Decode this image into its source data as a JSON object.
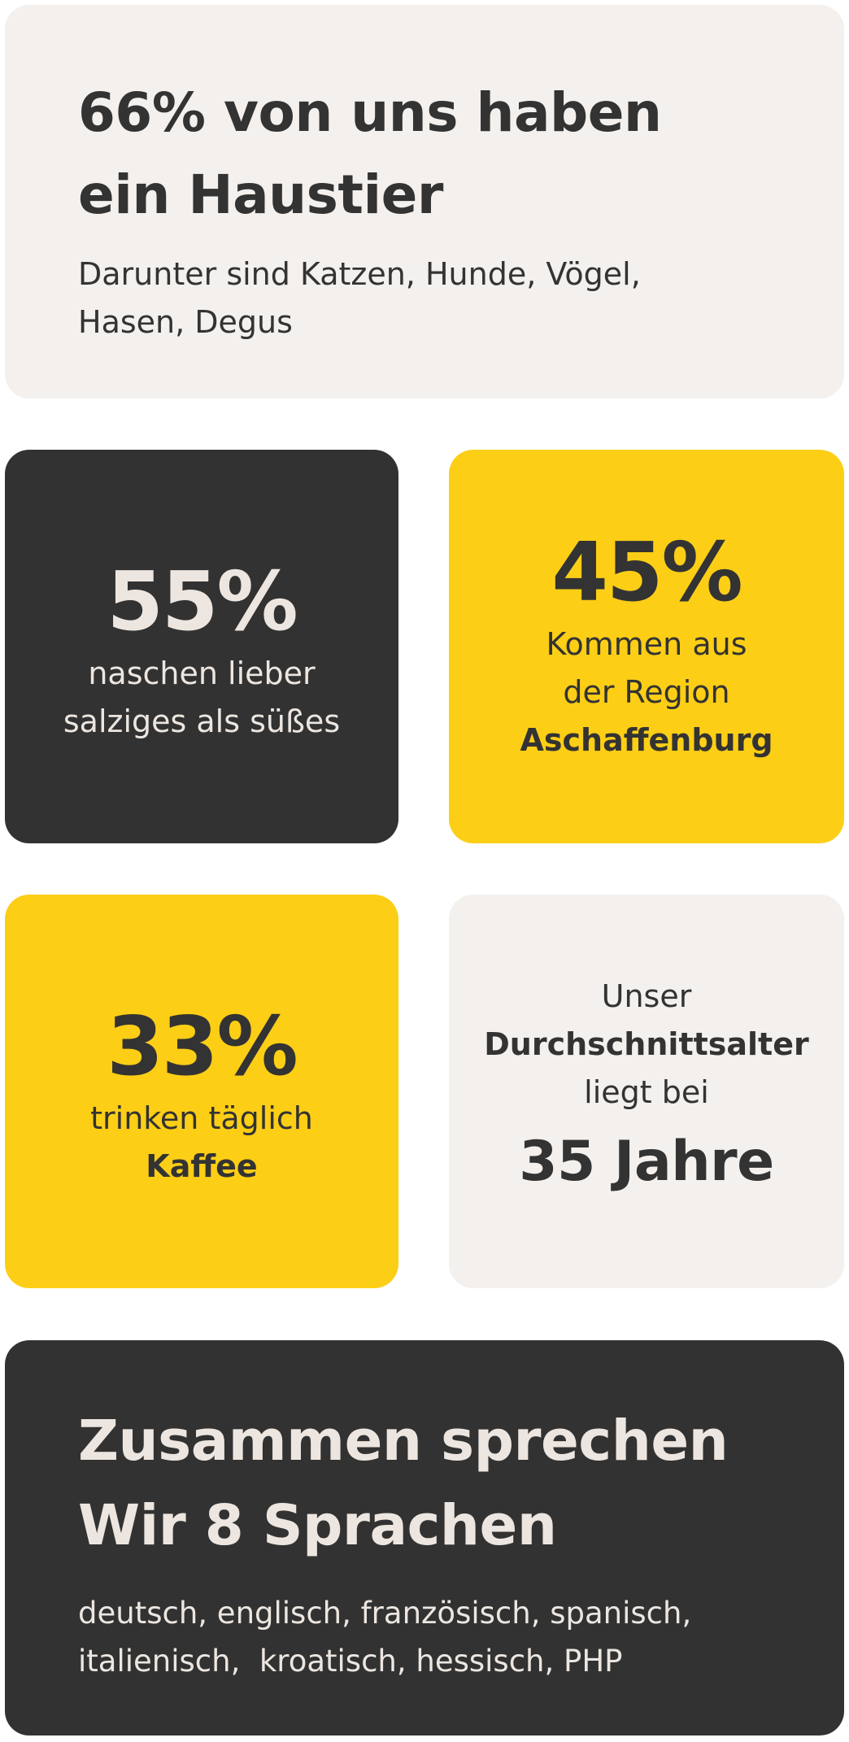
{
  "pets": {
    "heading_line1": "66% von uns haben",
    "heading_line2": "ein Haustier",
    "body_line1": "Darunter sind Katzen, Hunde, Vögel,",
    "body_line2": "Hasen, Degus"
  },
  "snacks": {
    "percent": "55%",
    "line1": "naschen lieber",
    "line2": "salziges als süßes"
  },
  "region": {
    "percent": "45%",
    "line1": "Kommen aus",
    "line2": "der Region",
    "line3": "Aschaffenburg"
  },
  "coffee": {
    "percent": "33%",
    "line1": "trinken täglich",
    "line2": "Kaffee"
  },
  "age": {
    "line1": "Unser",
    "line2": "Durchschnittsalter",
    "line3": "liegt bei",
    "value": "35 Jahre"
  },
  "languages": {
    "heading_line1": "Zusammen sprechen",
    "heading_line2": "Wir 8 Sprachen",
    "body_line1": "deutsch, englisch, französisch, spanisch,",
    "body_line2": "italienisch,  kroatisch, hessisch, PHP"
  },
  "colors": {
    "light_card": "#f3f0ed",
    "dark_card": "#323232",
    "yellow_card": "#fcce16",
    "dark_text": "#333333",
    "light_text": "#ede6e0"
  }
}
